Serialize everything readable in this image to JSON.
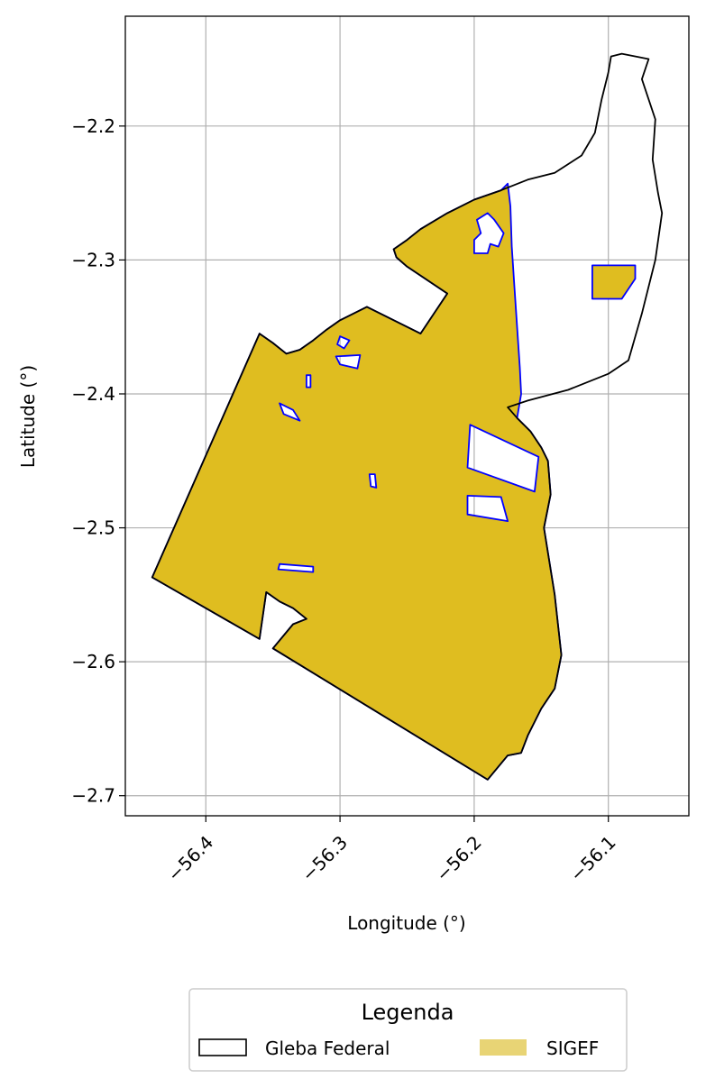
{
  "chart_data": {
    "type": "map",
    "xlabel": "Longitude (°)",
    "ylabel": "Latitude (°)",
    "xlim": [
      -56.46,
      -56.04
    ],
    "ylim": [
      -2.715,
      -2.118
    ],
    "grid": true,
    "x_ticks": [
      -56.4,
      -56.3,
      -56.2,
      -56.1
    ],
    "x_tick_labels": [
      "−56.4",
      "−56.3",
      "−56.2",
      "−56.1"
    ],
    "y_ticks": [
      -2.2,
      -2.3,
      -2.4,
      -2.5,
      -2.6,
      -2.7
    ],
    "y_tick_labels": [
      "−2.2",
      "−2.3",
      "−2.4",
      "−2.5",
      "−2.6",
      "−2.7"
    ],
    "legend": {
      "title": "Legenda",
      "placement": "bottom-center",
      "entries": [
        {
          "label": "Gleba Federal",
          "style": "outline",
          "color": "#000000"
        },
        {
          "label": "SIGEF",
          "style": "fill",
          "color": "#e8d475"
        }
      ]
    },
    "colors": {
      "sigef_fill": "#dfbd20",
      "sigef_edge": "#0000ff",
      "gleba_edge": "#000000",
      "grid": "#b0b0b0"
    },
    "layers": {
      "gleba_federal": [
        [
          -56.44,
          -2.537
        ],
        [
          -56.36,
          -2.355
        ],
        [
          -56.35,
          -2.362
        ],
        [
          -56.34,
          -2.37
        ],
        [
          -56.33,
          -2.367
        ],
        [
          -56.32,
          -2.36
        ],
        [
          -56.31,
          -2.352
        ],
        [
          -56.3,
          -2.345
        ],
        [
          -56.28,
          -2.335
        ],
        [
          -56.24,
          -2.355
        ],
        [
          -56.22,
          -2.325
        ],
        [
          -56.25,
          -2.305
        ],
        [
          -56.258,
          -2.298
        ],
        [
          -56.26,
          -2.292
        ],
        [
          -56.25,
          -2.285
        ],
        [
          -56.24,
          -2.277
        ],
        [
          -56.22,
          -2.265
        ],
        [
          -56.2,
          -2.255
        ],
        [
          -56.18,
          -2.248
        ],
        [
          -56.16,
          -2.24
        ],
        [
          -56.14,
          -2.235
        ],
        [
          -56.12,
          -2.222
        ],
        [
          -56.11,
          -2.205
        ],
        [
          -56.105,
          -2.18
        ],
        [
          -56.1,
          -2.16
        ],
        [
          -56.098,
          -2.148
        ],
        [
          -56.09,
          -2.146
        ],
        [
          -56.07,
          -2.15
        ],
        [
          -56.075,
          -2.165
        ],
        [
          -56.065,
          -2.195
        ],
        [
          -56.067,
          -2.225
        ],
        [
          -56.063,
          -2.25
        ],
        [
          -56.06,
          -2.265
        ],
        [
          -56.065,
          -2.3
        ],
        [
          -56.075,
          -2.34
        ],
        [
          -56.085,
          -2.375
        ],
        [
          -56.1,
          -2.385
        ],
        [
          -56.13,
          -2.397
        ],
        [
          -56.16,
          -2.405
        ],
        [
          -56.175,
          -2.41
        ],
        [
          -56.168,
          -2.418
        ],
        [
          -56.158,
          -2.428
        ],
        [
          -56.15,
          -2.44
        ],
        [
          -56.145,
          -2.45
        ],
        [
          -56.143,
          -2.475
        ],
        [
          -56.148,
          -2.5
        ],
        [
          -56.14,
          -2.55
        ],
        [
          -56.135,
          -2.595
        ],
        [
          -56.14,
          -2.62
        ],
        [
          -56.15,
          -2.635
        ],
        [
          -56.16,
          -2.655
        ],
        [
          -56.165,
          -2.668
        ],
        [
          -56.175,
          -2.67
        ],
        [
          -56.19,
          -2.688
        ],
        [
          -56.35,
          -2.59
        ],
        [
          -56.335,
          -2.572
        ],
        [
          -56.325,
          -2.568
        ],
        [
          -56.335,
          -2.56
        ],
        [
          -56.345,
          -2.555
        ],
        [
          -56.355,
          -2.548
        ],
        [
          -56.36,
          -2.583
        ],
        [
          -56.44,
          -2.537
        ]
      ],
      "sigef": [
        [
          -56.44,
          -2.537
        ],
        [
          -56.36,
          -2.355
        ],
        [
          -56.35,
          -2.362
        ],
        [
          -56.34,
          -2.37
        ],
        [
          -56.33,
          -2.367
        ],
        [
          -56.32,
          -2.36
        ],
        [
          -56.31,
          -2.352
        ],
        [
          -56.3,
          -2.345
        ],
        [
          -56.28,
          -2.335
        ],
        [
          -56.24,
          -2.355
        ],
        [
          -56.22,
          -2.325
        ],
        [
          -56.25,
          -2.305
        ],
        [
          -56.258,
          -2.298
        ],
        [
          -56.26,
          -2.292
        ],
        [
          -56.25,
          -2.285
        ],
        [
          -56.24,
          -2.277
        ],
        [
          -56.22,
          -2.265
        ],
        [
          -56.2,
          -2.255
        ],
        [
          -56.18,
          -2.248
        ],
        [
          -56.175,
          -2.243
        ],
        [
          -56.173,
          -2.26
        ],
        [
          -56.172,
          -2.29
        ],
        [
          -56.17,
          -2.32
        ],
        [
          -56.168,
          -2.35
        ],
        [
          -56.166,
          -2.38
        ],
        [
          -56.165,
          -2.4
        ],
        [
          -56.168,
          -2.418
        ],
        [
          -56.158,
          -2.428
        ],
        [
          -56.15,
          -2.44
        ],
        [
          -56.145,
          -2.45
        ],
        [
          -56.143,
          -2.475
        ],
        [
          -56.148,
          -2.5
        ],
        [
          -56.14,
          -2.55
        ],
        [
          -56.135,
          -2.595
        ],
        [
          -56.14,
          -2.62
        ],
        [
          -56.15,
          -2.635
        ],
        [
          -56.16,
          -2.655
        ],
        [
          -56.165,
          -2.668
        ],
        [
          -56.175,
          -2.67
        ],
        [
          -56.19,
          -2.688
        ],
        [
          -56.35,
          -2.59
        ],
        [
          -56.335,
          -2.572
        ],
        [
          -56.325,
          -2.568
        ],
        [
          -56.335,
          -2.56
        ],
        [
          -56.345,
          -2.555
        ],
        [
          -56.355,
          -2.548
        ],
        [
          -56.36,
          -2.583
        ],
        [
          -56.44,
          -2.537
        ]
      ],
      "sigef_holes": [
        [
          [
            -56.198,
            -2.27
          ],
          [
            -56.19,
            -2.265
          ],
          [
            -56.185,
            -2.27
          ],
          [
            -56.178,
            -2.28
          ],
          [
            -56.182,
            -2.29
          ],
          [
            -56.188,
            -2.288
          ],
          [
            -56.19,
            -2.295
          ],
          [
            -56.2,
            -2.295
          ],
          [
            -56.2,
            -2.285
          ],
          [
            -56.195,
            -2.28
          ]
        ],
        [
          [
            -56.152,
            -2.447
          ],
          [
            -56.203,
            -2.423
          ],
          [
            -56.205,
            -2.455
          ],
          [
            -56.155,
            -2.473
          ]
        ],
        [
          [
            -56.205,
            -2.476
          ],
          [
            -56.18,
            -2.477
          ],
          [
            -56.175,
            -2.495
          ],
          [
            -56.205,
            -2.49
          ]
        ],
        [
          [
            -56.345,
            -2.407
          ],
          [
            -56.335,
            -2.412
          ],
          [
            -56.33,
            -2.42
          ],
          [
            -56.342,
            -2.415
          ]
        ],
        [
          [
            -56.3,
            -2.357
          ],
          [
            -56.293,
            -2.36
          ],
          [
            -56.297,
            -2.366
          ],
          [
            -56.302,
            -2.363
          ]
        ],
        [
          [
            -56.303,
            -2.372
          ],
          [
            -56.285,
            -2.371
          ],
          [
            -56.287,
            -2.381
          ],
          [
            -56.3,
            -2.378
          ]
        ],
        [
          [
            -56.345,
            -2.527
          ],
          [
            -56.32,
            -2.529
          ],
          [
            -56.32,
            -2.533
          ],
          [
            -56.346,
            -2.531
          ]
        ],
        [
          [
            -56.278,
            -2.46
          ],
          [
            -56.274,
            -2.46
          ],
          [
            -56.273,
            -2.47
          ],
          [
            -56.277,
            -2.469
          ]
        ],
        [
          [
            -56.325,
            -2.386
          ],
          [
            -56.322,
            -2.386
          ],
          [
            -56.322,
            -2.395
          ],
          [
            -56.325,
            -2.395
          ]
        ]
      ],
      "sigef_eastern_parcel": [
        [
          -56.112,
          -2.304
        ],
        [
          -56.08,
          -2.304
        ],
        [
          -56.08,
          -2.314
        ],
        [
          -56.09,
          -2.329
        ],
        [
          -56.112,
          -2.329
        ]
      ]
    }
  }
}
